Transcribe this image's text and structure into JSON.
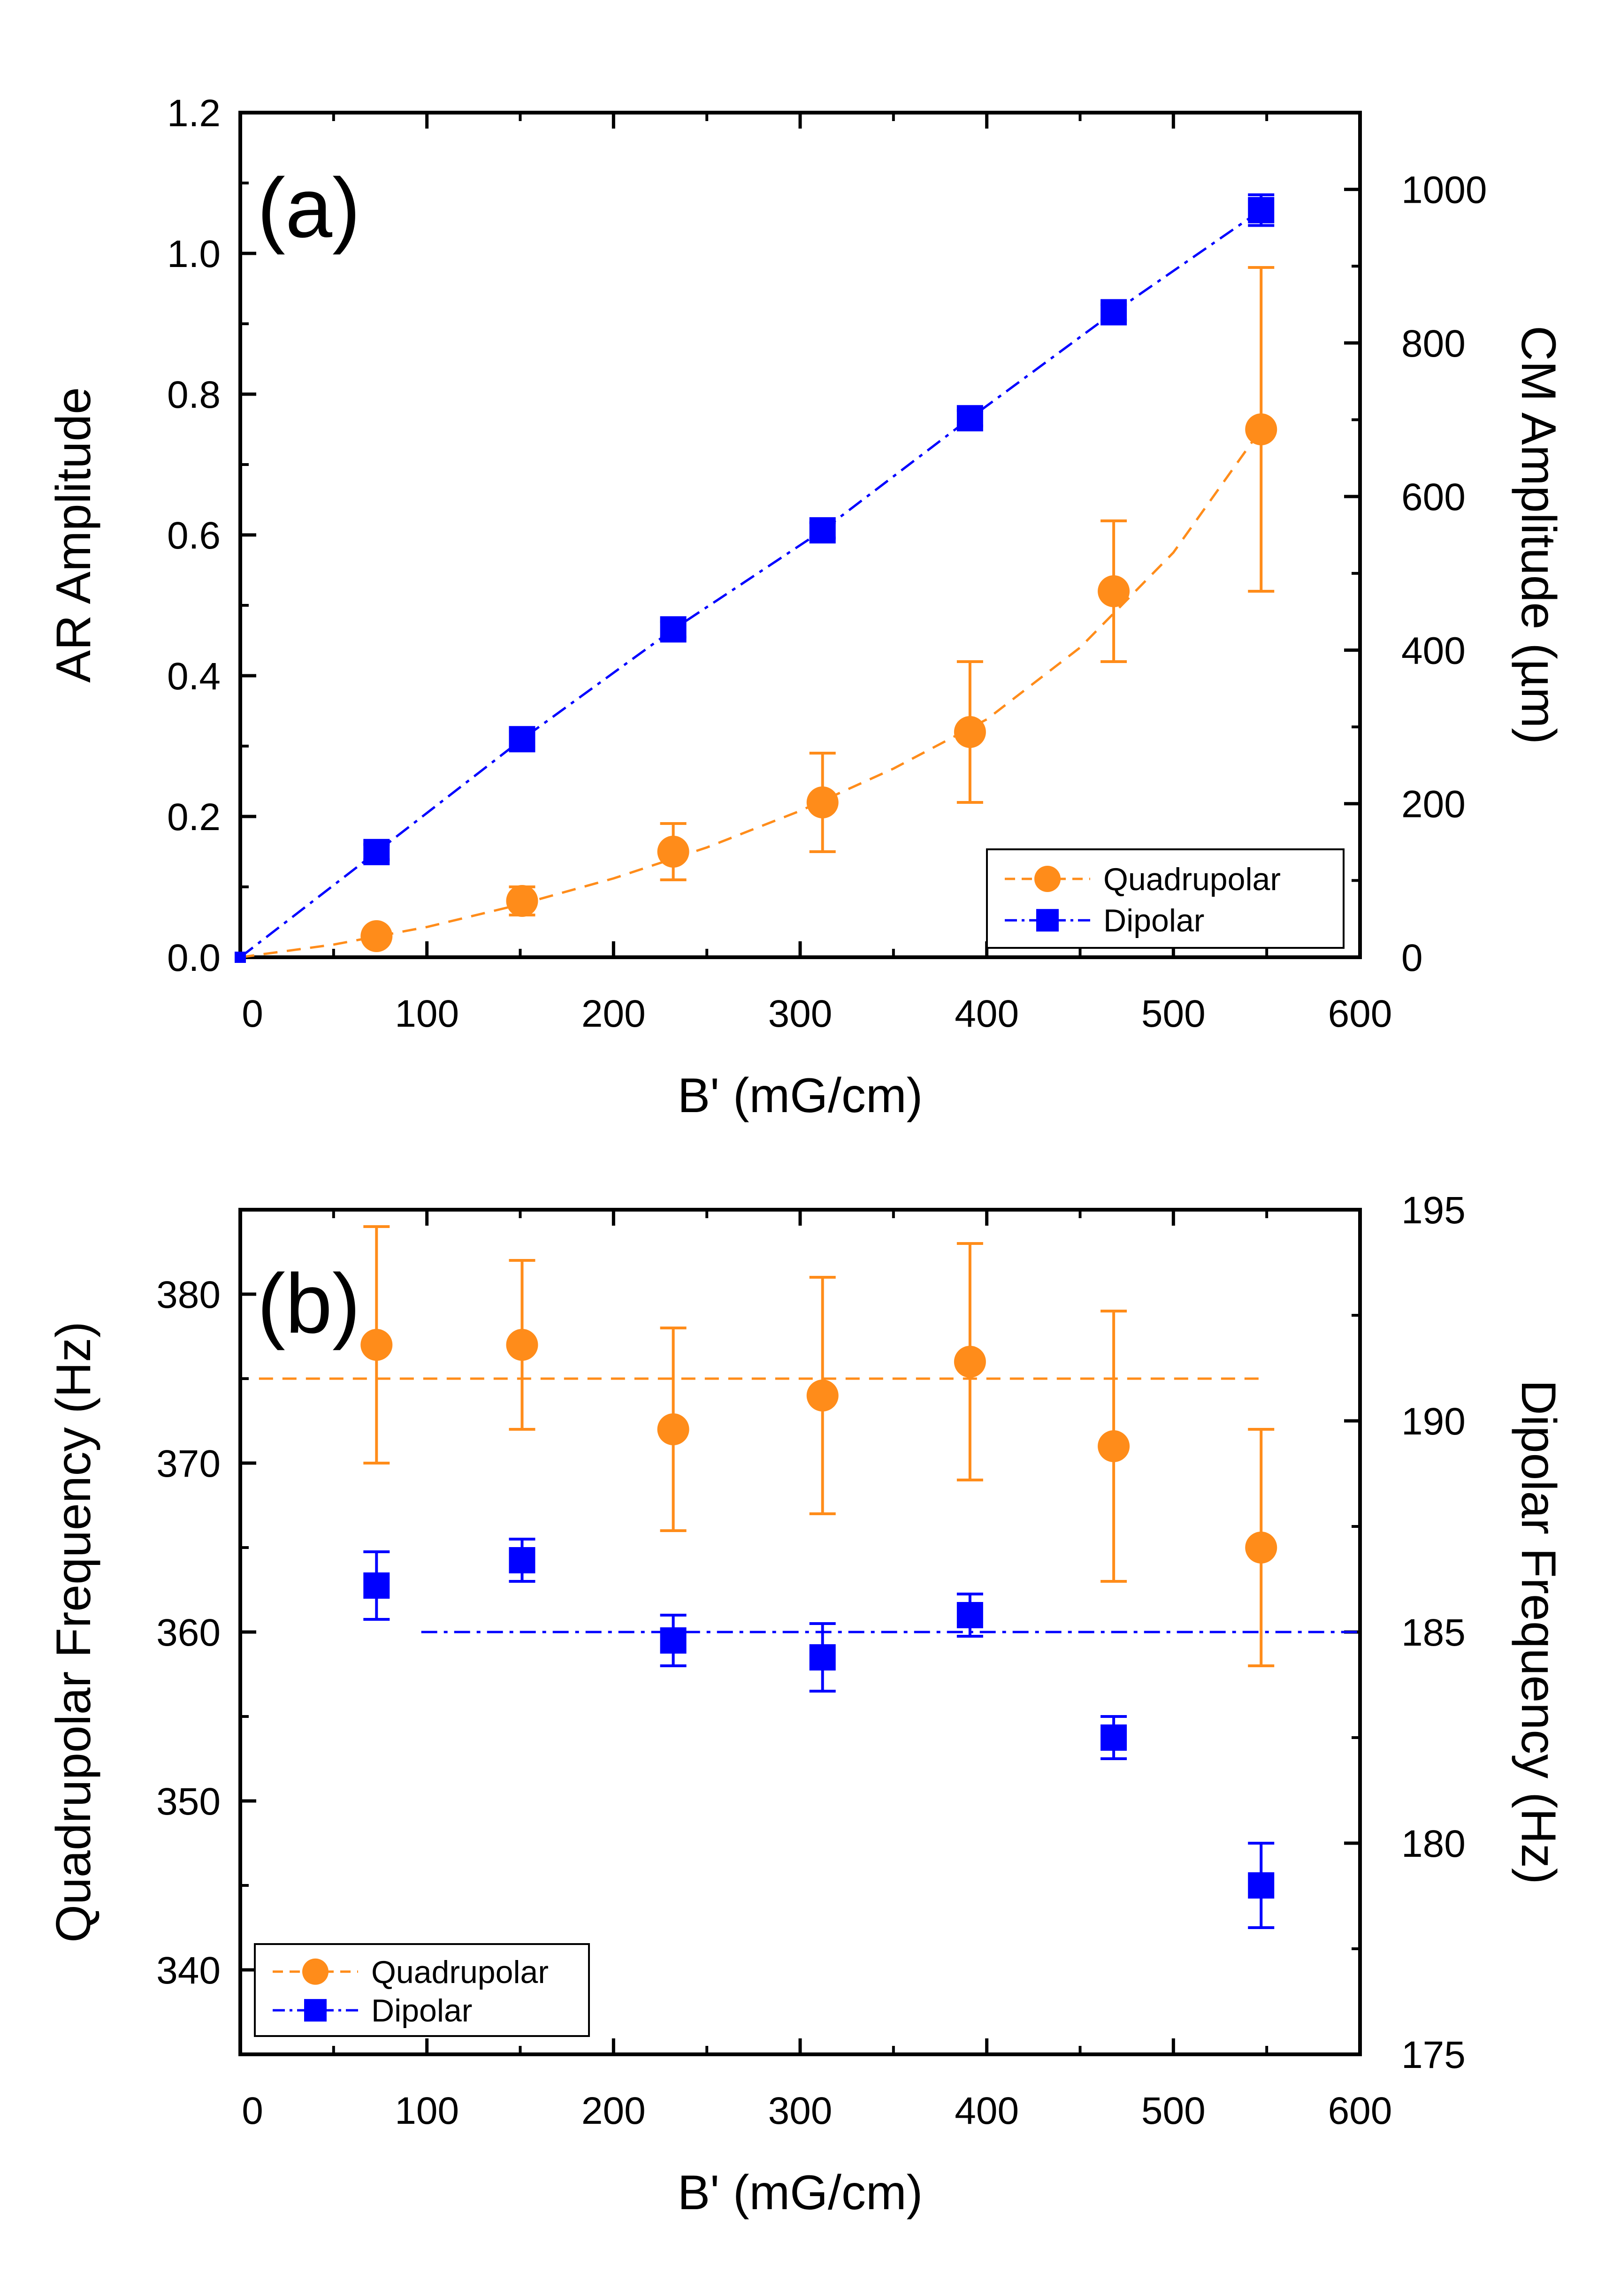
{
  "chart_data": [
    {
      "type": "scatter",
      "panel_label": "(a)",
      "xlabel": "B' (mG/cm)",
      "ylabel": "AR Amplitude",
      "y2label": "CM Amplitude (µm)",
      "xlim": [
        0,
        600
      ],
      "ylim": [
        0,
        1.2
      ],
      "y2lim": [
        0,
        1100
      ],
      "xticks": [
        0,
        100,
        200,
        300,
        400,
        500,
        600
      ],
      "yticks": [
        0.0,
        0.2,
        0.4,
        0.6,
        0.8,
        1.0,
        1.2
      ],
      "ytick_labels": [
        "0.0",
        "0.2",
        "0.4",
        "0.6",
        "0.8",
        "1.0",
        "1.2"
      ],
      "y2ticks": [
        0,
        200,
        400,
        600,
        800,
        1000
      ],
      "legend_position": "bottom-right",
      "series": [
        {
          "name": "Quadrupolar",
          "axis": "left",
          "color": "#ff8c1a",
          "marker": "circle",
          "line": "dashed",
          "x": [
            73,
            151,
            232,
            312,
            391,
            468,
            547
          ],
          "y": [
            0.03,
            0.08,
            0.15,
            0.22,
            0.32,
            0.52,
            0.75
          ],
          "yerr": [
            0.01,
            0.02,
            0.04,
            0.07,
            0.1,
            0.1,
            0.23
          ],
          "fit": {
            "x": [
              0,
              50,
              100,
              150,
              200,
              250,
              300,
              350,
              400,
              450,
              500,
              547
            ],
            "y": [
              0.0,
              0.018,
              0.043,
              0.075,
              0.112,
              0.156,
              0.208,
              0.268,
              0.338,
              0.44,
              0.575,
              0.75
            ]
          }
        },
        {
          "name": "Dipolar",
          "axis": "right",
          "color": "#0000ff",
          "marker": "square",
          "line": "dash-dot",
          "x": [
            73,
            151,
            232,
            312,
            391,
            468,
            547
          ],
          "y": [
            137,
            284,
            427,
            556,
            702,
            840,
            973
          ],
          "yerr": [
            10,
            10,
            10,
            10,
            10,
            10,
            20
          ],
          "fit": {
            "x": [
              0,
              73,
              151,
              232,
              312,
              391,
              468,
              547
            ],
            "y": [
              0,
              137,
              284,
              427,
              556,
              702,
              840,
              973
            ]
          }
        }
      ]
    },
    {
      "type": "scatter",
      "panel_label": "(b)",
      "xlabel": "B' (mG/cm)",
      "ylabel": "Quadrupolar Frequency (Hz)",
      "y2label": "Dipolar Frequency (Hz)",
      "xlim": [
        0,
        600
      ],
      "ylim": [
        335,
        385
      ],
      "y2lim": [
        175,
        195
      ],
      "xticks": [
        0,
        100,
        200,
        300,
        400,
        500,
        600
      ],
      "yticks": [
        340,
        350,
        360,
        370,
        380
      ],
      "y2ticks": [
        175,
        180,
        185,
        190,
        195
      ],
      "legend_position": "bottom-left",
      "series": [
        {
          "name": "Quadrupolar",
          "axis": "left",
          "color": "#ff8c1a",
          "marker": "circle",
          "line": "dashed",
          "x": [
            73,
            151,
            232,
            312,
            391,
            468,
            547
          ],
          "y": [
            377,
            377,
            372,
            374,
            376,
            371,
            365
          ],
          "yerr": [
            7,
            5,
            6,
            7,
            7,
            8,
            7
          ],
          "fit": {
            "x": [
              10,
              550
            ],
            "y": [
              375,
              375
            ]
          }
        },
        {
          "name": "Dipolar",
          "axis": "right",
          "color": "#0000ff",
          "marker": "square",
          "line": "dash-dot",
          "x": [
            73,
            151,
            232,
            312,
            391,
            468,
            547
          ],
          "y": [
            186.1,
            186.7,
            184.8,
            184.4,
            185.4,
            182.5,
            179.0
          ],
          "yerr": [
            0.8,
            0.5,
            0.6,
            0.8,
            0.5,
            0.5,
            1.0
          ],
          "fit": {
            "x": [
              97,
              600
            ],
            "y": [
              185,
              185
            ]
          }
        }
      ]
    }
  ]
}
